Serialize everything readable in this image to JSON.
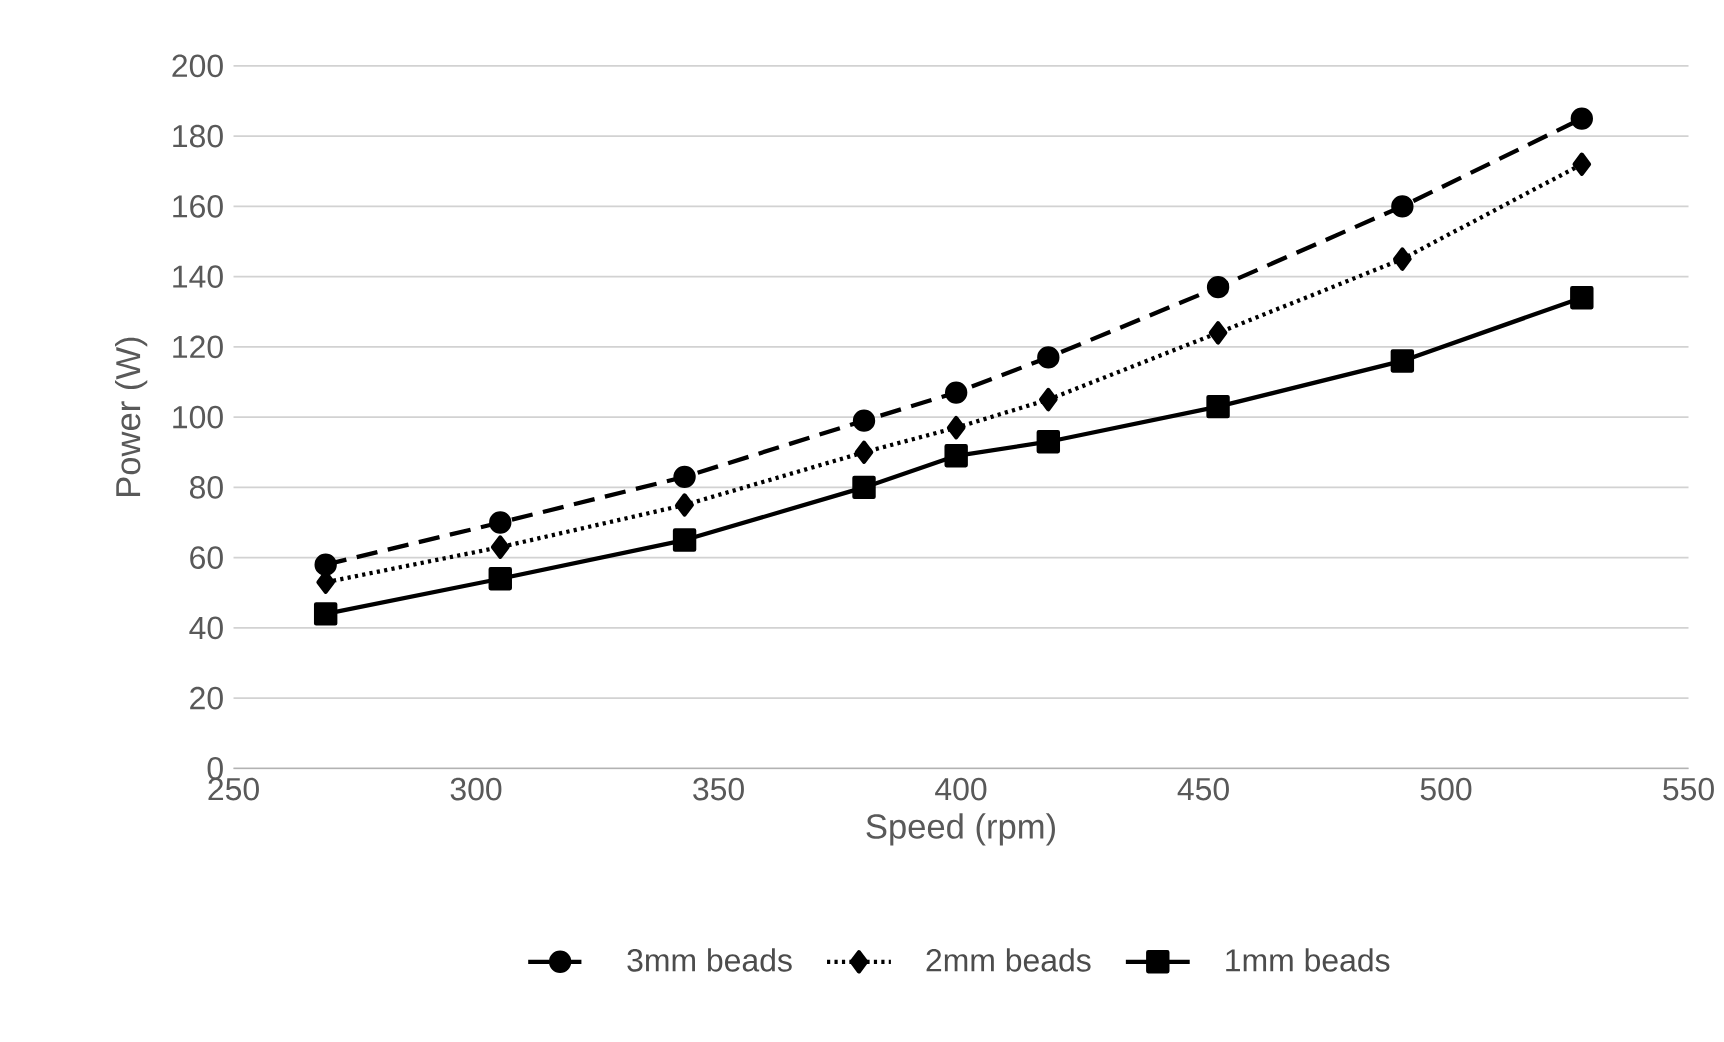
{
  "chart_data": {
    "type": "line",
    "xlabel": "Speed (rpm)",
    "ylabel": "Power (W)",
    "x": [
      269,
      305,
      343,
      380,
      399,
      418,
      453,
      491,
      528
    ],
    "series": [
      {
        "name": "3mm beads",
        "color": "#000000",
        "line_style": "dashed",
        "marker": "circle",
        "values": [
          58,
          70,
          83,
          99,
          107,
          117,
          137,
          160,
          185
        ]
      },
      {
        "name": "2mm beads",
        "color": "#000000",
        "line_style": "dotted",
        "marker": "diamond",
        "values": [
          53,
          63,
          75,
          90,
          97,
          105,
          124,
          145,
          172
        ]
      },
      {
        "name": "1mm beads",
        "color": "#000000",
        "line_style": "solid",
        "marker": "square",
        "values": [
          44,
          54,
          65,
          80,
          89,
          93,
          103,
          116,
          134
        ]
      }
    ],
    "xlim": [
      250,
      550
    ],
    "xticks": [
      250,
      300,
      350,
      400,
      450,
      500,
      550
    ],
    "ylim": [
      0,
      200
    ],
    "yticks": [
      0,
      20,
      40,
      60,
      80,
      100,
      120,
      140,
      160,
      180,
      200
    ],
    "grid": "y",
    "legend": "bottom"
  }
}
